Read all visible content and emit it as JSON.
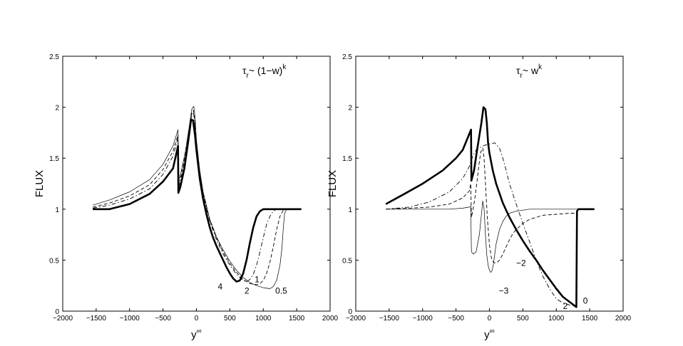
{
  "chart_data": [
    {
      "type": "line",
      "title_parts": {
        "main": "τ",
        "sub": "r",
        "rest": "~ (1−w)",
        "sup": "k"
      },
      "xlabel_parts": {
        "main": "y",
        "sup": "∞"
      },
      "ylabel": "FLUX",
      "xlim": [
        -2000,
        2000
      ],
      "ylim": [
        0,
        2.5
      ],
      "xticks": [
        "−2000",
        "−1500",
        "−1000",
        "−500",
        "0",
        "500",
        "1000",
        "1500",
        "2000"
      ],
      "yticks": [
        "0",
        "0.5",
        "1",
        "1.5",
        "2",
        "2.5"
      ],
      "grid": false,
      "series": [
        {
          "style": "thick",
          "x": [
            -1550,
            -1300,
            -1000,
            -700,
            -500,
            -350,
            -275,
            -270,
            -240,
            -180,
            -120,
            -80,
            -50,
            -20,
            0,
            50,
            100,
            150,
            200,
            250,
            300,
            350,
            400,
            450,
            500,
            550,
            600,
            650,
            700,
            750,
            800,
            850,
            900,
            950,
            1000,
            1050,
            1100,
            1150,
            1200,
            1250,
            1300,
            1400,
            1570
          ],
          "y": [
            1.0,
            1.0,
            1.05,
            1.15,
            1.27,
            1.4,
            1.62,
            1.16,
            1.22,
            1.4,
            1.68,
            1.88,
            1.87,
            1.72,
            1.58,
            1.3,
            1.1,
            0.95,
            0.82,
            0.72,
            0.64,
            0.57,
            0.5,
            0.43,
            0.37,
            0.32,
            0.29,
            0.3,
            0.37,
            0.5,
            0.67,
            0.82,
            0.93,
            0.98,
            1.0,
            1.0,
            1.0,
            1.0,
            1.0,
            1.0,
            1.0,
            1.0,
            1.0
          ]
        },
        {
          "style": "dashdot",
          "x": [
            -1550,
            -1300,
            -1000,
            -700,
            -500,
            -350,
            -275,
            -270,
            -230,
            -170,
            -110,
            -70,
            -45,
            -25,
            0,
            50,
            100,
            150,
            200,
            300,
            400,
            500,
            600,
            700,
            750,
            800,
            850,
            900,
            950,
            1000,
            1050,
            1100,
            1150,
            1200,
            1250,
            1300,
            1350,
            1400
          ],
          "y": [
            1.01,
            1.04,
            1.1,
            1.2,
            1.34,
            1.52,
            1.7,
            1.2,
            1.3,
            1.48,
            1.73,
            1.93,
            1.95,
            1.85,
            1.65,
            1.36,
            1.15,
            1.0,
            0.88,
            0.7,
            0.56,
            0.45,
            0.36,
            0.3,
            0.29,
            0.31,
            0.36,
            0.45,
            0.58,
            0.72,
            0.85,
            0.93,
            0.98,
            1.0,
            1.0,
            1.0,
            1.0,
            1.0
          ]
        },
        {
          "style": "dashed",
          "x": [
            -1550,
            -1300,
            -1000,
            -700,
            -500,
            -350,
            -275,
            -270,
            -230,
            -170,
            -110,
            -70,
            -45,
            -25,
            0,
            50,
            100,
            200,
            300,
            400,
            500,
            600,
            700,
            800,
            900,
            950,
            1000,
            1050,
            1100,
            1150,
            1200,
            1250,
            1300,
            1350,
            1400
          ],
          "y": [
            1.02,
            1.06,
            1.13,
            1.24,
            1.39,
            1.57,
            1.73,
            1.24,
            1.33,
            1.52,
            1.76,
            1.95,
            1.97,
            1.87,
            1.66,
            1.37,
            1.16,
            0.89,
            0.72,
            0.58,
            0.47,
            0.38,
            0.31,
            0.27,
            0.26,
            0.27,
            0.3,
            0.37,
            0.48,
            0.63,
            0.8,
            0.93,
            0.99,
            1.0,
            1.0
          ]
        },
        {
          "style": "thin",
          "x": [
            -1550,
            -1300,
            -1000,
            -700,
            -500,
            -350,
            -275,
            -270,
            -230,
            -170,
            -110,
            -70,
            -40,
            -20,
            0,
            50,
            100,
            200,
            300,
            400,
            500,
            600,
            700,
            800,
            900,
            1000,
            1100,
            1150,
            1200,
            1250,
            1280,
            1300,
            1320,
            1350,
            1400
          ],
          "y": [
            1.04,
            1.09,
            1.17,
            1.29,
            1.44,
            1.62,
            1.78,
            1.27,
            1.36,
            1.55,
            1.8,
            1.98,
            2.01,
            1.9,
            1.68,
            1.38,
            1.17,
            0.9,
            0.73,
            0.6,
            0.49,
            0.4,
            0.33,
            0.28,
            0.25,
            0.23,
            0.22,
            0.24,
            0.3,
            0.45,
            0.62,
            0.82,
            0.96,
            1.0,
            1.0
          ]
        }
      ],
      "annotations": [
        {
          "text": "4",
          "x": 320,
          "y": 0.24
        },
        {
          "text": "2",
          "x": 720,
          "y": 0.2
        },
        {
          "text": "1",
          "x": 870,
          "y": 0.31
        },
        {
          "text": "0.5",
          "x": 1180,
          "y": 0.2
        }
      ]
    },
    {
      "type": "line",
      "title_parts": {
        "main": "τ",
        "sub": "r",
        "rest": "~ w",
        "sup": "k"
      },
      "xlabel_parts": {
        "main": "y",
        "sup": "∞"
      },
      "ylabel": "FLUX",
      "xlim": [
        -2000,
        2000
      ],
      "ylim": [
        0,
        2.5
      ],
      "xticks": [
        "−2000",
        "−1500",
        "−1000",
        "−500",
        "0",
        "500",
        "1000",
        "1500",
        "2000"
      ],
      "yticks": [
        "0",
        "0.5",
        "1",
        "1.5",
        "2",
        "2.5"
      ],
      "grid": false,
      "series": [
        {
          "style": "thick",
          "x": [
            -1550,
            -1300,
            -1000,
            -700,
            -500,
            -400,
            -300,
            -275,
            -270,
            -230,
            -180,
            -120,
            -90,
            -60,
            -40,
            -20,
            0,
            50,
            100,
            200,
            300,
            400,
            500,
            600,
            700,
            800,
            900,
            1000,
            1100,
            1200,
            1300,
            1310,
            1330,
            1350,
            1400,
            1570
          ],
          "y": [
            1.05,
            1.14,
            1.25,
            1.38,
            1.5,
            1.58,
            1.74,
            1.78,
            1.28,
            1.38,
            1.6,
            1.85,
            2.0,
            1.98,
            1.85,
            1.65,
            1.55,
            1.38,
            1.25,
            1.06,
            0.92,
            0.8,
            0.69,
            0.59,
            0.5,
            0.4,
            0.31,
            0.22,
            0.14,
            0.09,
            0.04,
            0.98,
            1.0,
            1.0,
            1.0,
            1.0
          ]
        },
        {
          "style": "dashdot",
          "x": [
            -1550,
            -1200,
            -900,
            -600,
            -400,
            -300,
            -250,
            -200,
            -100,
            0,
            80,
            150,
            200,
            250,
            300,
            400,
            500,
            600,
            700,
            800,
            900,
            1000,
            1100,
            1200,
            1300
          ],
          "y": [
            1.0,
            1.02,
            1.07,
            1.17,
            1.3,
            1.42,
            1.52,
            1.58,
            1.62,
            1.64,
            1.65,
            1.6,
            1.5,
            1.38,
            1.25,
            1.05,
            0.86,
            0.68,
            0.5,
            0.34,
            0.22,
            0.12,
            0.08,
            0.06,
            0.05
          ]
        },
        {
          "style": "dashed",
          "x": [
            -1550,
            -1200,
            -900,
            -600,
            -400,
            -300,
            -280,
            -270,
            -250,
            -220,
            -190,
            -160,
            -130,
            -100,
            -80,
            -60,
            -30,
            0,
            30,
            60,
            100,
            150,
            200,
            250,
            300,
            350,
            400,
            500,
            600,
            700,
            800,
            1000,
            1200,
            1300
          ],
          "y": [
            1.0,
            1.01,
            1.02,
            1.05,
            1.11,
            1.18,
            1.25,
            0.92,
            0.98,
            1.1,
            1.25,
            1.42,
            1.56,
            1.6,
            1.5,
            1.25,
            0.9,
            0.65,
            0.52,
            0.48,
            0.47,
            0.5,
            0.56,
            0.63,
            0.7,
            0.76,
            0.8,
            0.86,
            0.9,
            0.92,
            0.94,
            0.95,
            0.96,
            0.96
          ]
        },
        {
          "style": "thin",
          "x": [
            -1550,
            -1000,
            -600,
            -400,
            -300,
            -280,
            -270,
            -260,
            -240,
            -200,
            -150,
            -120,
            -100,
            -80,
            -60,
            -40,
            -20,
            0,
            20,
            40,
            60,
            80,
            100,
            150,
            200,
            250,
            300,
            400,
            500,
            600,
            700,
            800,
            900,
            1000,
            1200,
            1300,
            1400,
            1570
          ],
          "y": [
            1.0,
            1.0,
            1.0,
            1.01,
            1.02,
            1.03,
            0.6,
            0.57,
            0.56,
            0.58,
            0.75,
            0.95,
            1.08,
            1.0,
            0.75,
            0.55,
            0.45,
            0.4,
            0.38,
            0.4,
            0.46,
            0.56,
            0.66,
            0.8,
            0.88,
            0.93,
            0.96,
            0.98,
            0.99,
            1.0,
            1.0,
            1.0,
            1.0,
            1.0,
            1.0,
            1.0,
            1.0,
            1.0
          ]
        }
      ],
      "annotations": [
        {
          "text": "−2",
          "x": 400,
          "y": 0.47
        },
        {
          "text": "−3",
          "x": 140,
          "y": 0.2
        },
        {
          "text": "2",
          "x": 1100,
          "y": 0.05
        },
        {
          "text": "0",
          "x": 1400,
          "y": 0.1
        }
      ]
    }
  ]
}
